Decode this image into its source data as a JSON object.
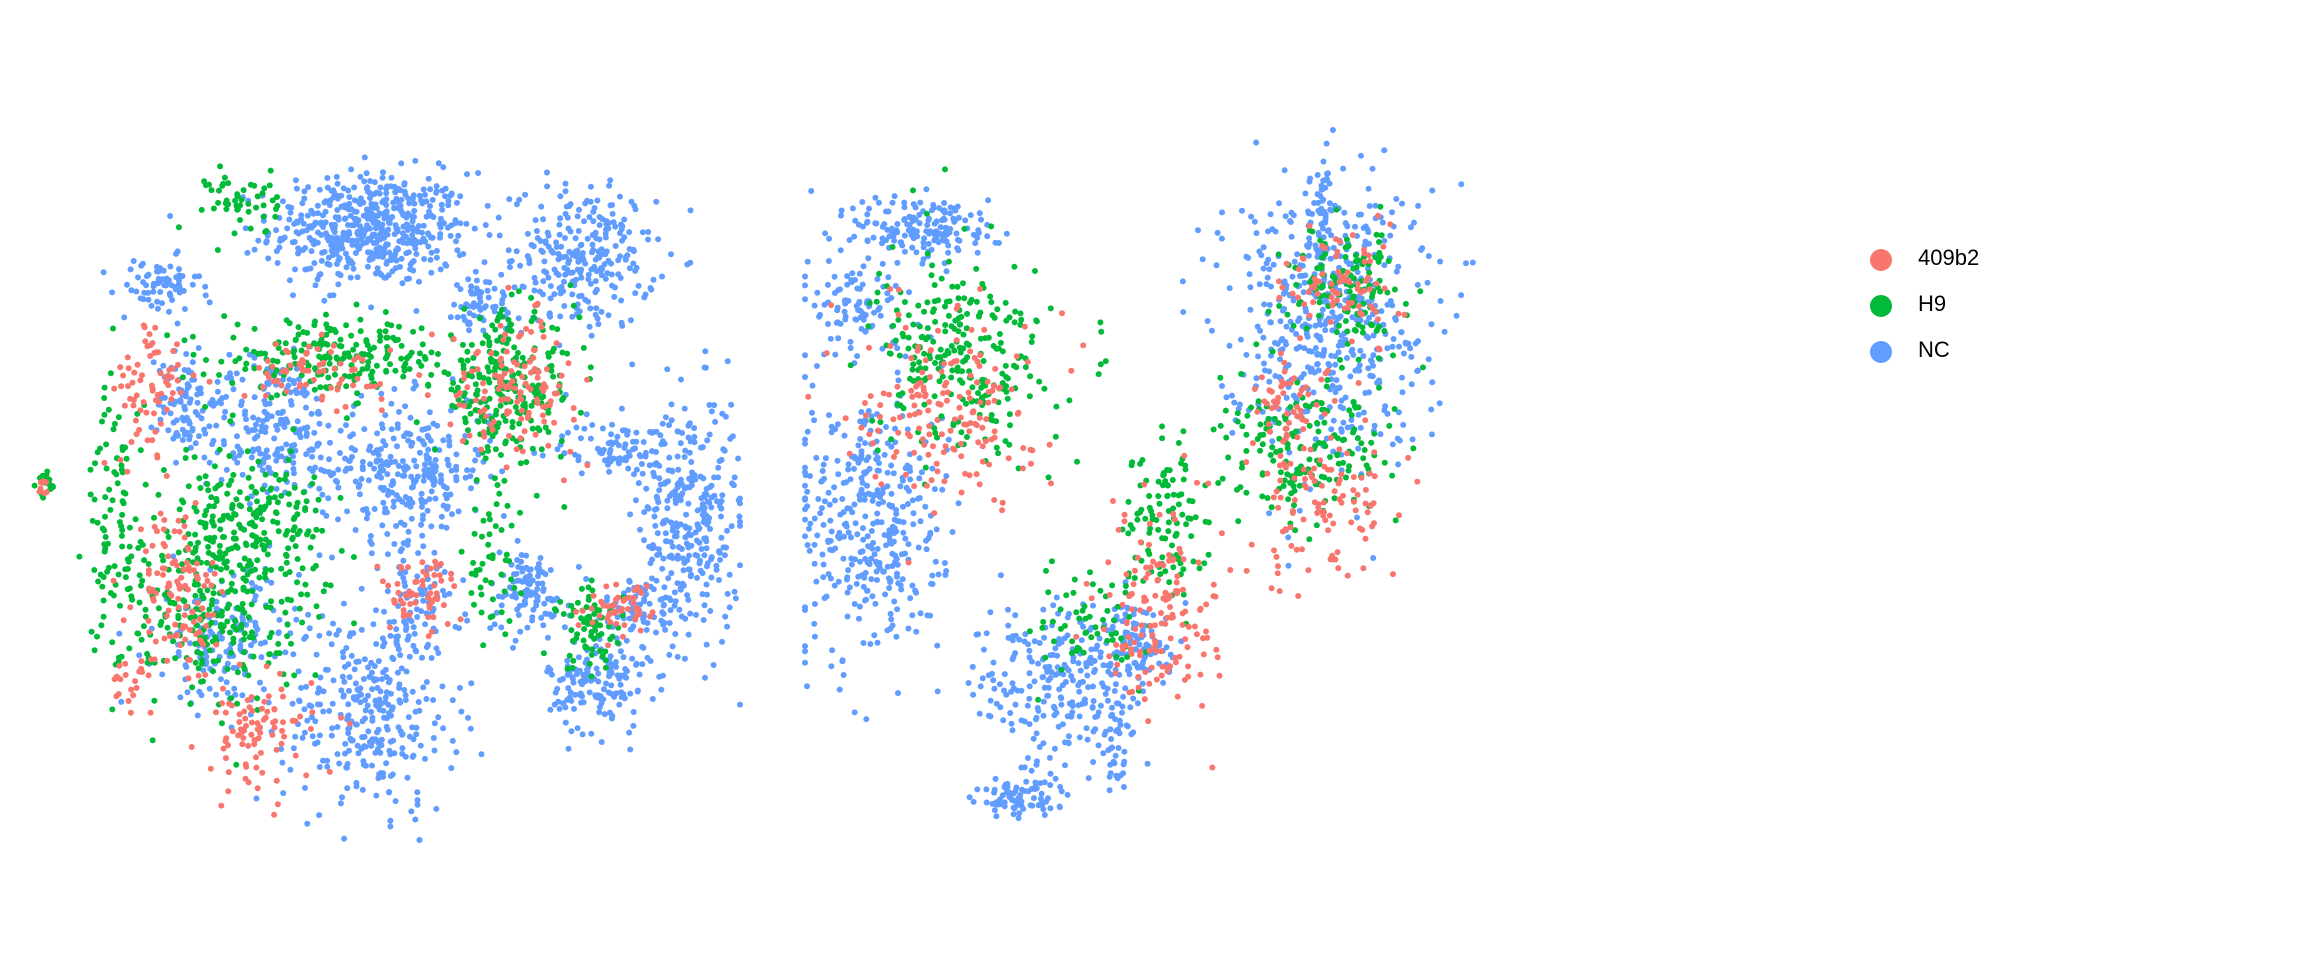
{
  "chart_data": [
    {
      "type": "scatter",
      "panel": "left",
      "title": "",
      "xlabel": "",
      "ylabel": "",
      "grid": false,
      "axes_visible": false,
      "series": [
        {
          "name": "NC",
          "color": "#619CFF",
          "clusters": [
            {
              "cx": 0.48,
              "cy": 0.86,
              "sx": 0.07,
              "sy": 0.04,
              "n": 520
            },
            {
              "cx": 0.78,
              "cy": 0.82,
              "sx": 0.05,
              "sy": 0.05,
              "n": 260
            },
            {
              "cx": 0.18,
              "cy": 0.78,
              "sx": 0.03,
              "sy": 0.02,
              "n": 70
            },
            {
              "cx": 0.22,
              "cy": 0.62,
              "sx": 0.02,
              "sy": 0.04,
              "n": 80
            },
            {
              "cx": 0.34,
              "cy": 0.58,
              "sx": 0.05,
              "sy": 0.05,
              "n": 200
            },
            {
              "cx": 0.53,
              "cy": 0.52,
              "sx": 0.06,
              "sy": 0.05,
              "n": 280
            },
            {
              "cx": 0.93,
              "cy": 0.45,
              "sx": 0.035,
              "sy": 0.09,
              "n": 300
            },
            {
              "cx": 0.83,
              "cy": 0.55,
              "sx": 0.04,
              "sy": 0.02,
              "n": 90
            },
            {
              "cx": 0.8,
              "cy": 0.22,
              "sx": 0.035,
              "sy": 0.035,
              "n": 150
            },
            {
              "cx": 0.86,
              "cy": 0.33,
              "sx": 0.025,
              "sy": 0.02,
              "n": 70
            },
            {
              "cx": 0.7,
              "cy": 0.35,
              "sx": 0.03,
              "sy": 0.03,
              "n": 100
            },
            {
              "cx": 0.48,
              "cy": 0.18,
              "sx": 0.06,
              "sy": 0.07,
              "n": 300
            },
            {
              "cx": 0.28,
              "cy": 0.28,
              "sx": 0.05,
              "sy": 0.05,
              "n": 150
            },
            {
              "cx": 0.55,
              "cy": 0.33,
              "sx": 0.03,
              "sy": 0.03,
              "n": 70
            },
            {
              "cx": 0.63,
              "cy": 0.75,
              "sx": 0.035,
              "sy": 0.025,
              "n": 60
            }
          ]
        },
        {
          "name": "H9",
          "color": "#00BA38",
          "clusters": [
            {
              "cx": 0.67,
              "cy": 0.64,
              "sx": 0.05,
              "sy": 0.05,
              "n": 260
            },
            {
              "cx": 0.43,
              "cy": 0.68,
              "sx": 0.08,
              "sy": 0.025,
              "n": 200
            },
            {
              "cx": 0.3,
              "cy": 0.43,
              "sx": 0.06,
              "sy": 0.06,
              "n": 280
            },
            {
              "cx": 0.25,
              "cy": 0.3,
              "sx": 0.06,
              "sy": 0.06,
              "n": 170
            },
            {
              "cx": 0.3,
              "cy": 0.9,
              "sx": 0.025,
              "sy": 0.025,
              "n": 50
            },
            {
              "cx": 0.12,
              "cy": 0.45,
              "sx": 0.02,
              "sy": 0.1,
              "n": 90
            },
            {
              "cx": 0.79,
              "cy": 0.3,
              "sx": 0.025,
              "sy": 0.03,
              "n": 70
            },
            {
              "cx": 0.65,
              "cy": 0.38,
              "sx": 0.02,
              "sy": 0.06,
              "n": 50
            },
            {
              "cx": 0.02,
              "cy": 0.5,
              "sx": 0.006,
              "sy": 0.01,
              "n": 16
            }
          ]
        },
        {
          "name": "409b2",
          "color": "#F8766D",
          "clusters": [
            {
              "cx": 0.32,
              "cy": 0.15,
              "sx": 0.04,
              "sy": 0.04,
              "n": 90
            },
            {
              "cx": 0.21,
              "cy": 0.35,
              "sx": 0.03,
              "sy": 0.06,
              "n": 110
            },
            {
              "cx": 0.17,
              "cy": 0.63,
              "sx": 0.025,
              "sy": 0.05,
              "n": 70
            },
            {
              "cx": 0.55,
              "cy": 0.35,
              "sx": 0.03,
              "sy": 0.025,
              "n": 60
            },
            {
              "cx": 0.68,
              "cy": 0.64,
              "sx": 0.045,
              "sy": 0.045,
              "n": 130
            },
            {
              "cx": 0.84,
              "cy": 0.33,
              "sx": 0.03,
              "sy": 0.02,
              "n": 50
            },
            {
              "cx": 0.4,
              "cy": 0.66,
              "sx": 0.05,
              "sy": 0.02,
              "n": 70
            },
            {
              "cx": 0.14,
              "cy": 0.22,
              "sx": 0.015,
              "sy": 0.015,
              "n": 20
            },
            {
              "cx": 0.02,
              "cy": 0.5,
              "sx": 0.006,
              "sy": 0.01,
              "n": 8
            }
          ]
        }
      ]
    },
    {
      "type": "scatter",
      "panel": "right",
      "title": "",
      "xlabel": "",
      "ylabel": "",
      "grid": false,
      "axes_visible": false,
      "series": [
        {
          "name": "NC",
          "color": "#619CFF",
          "clusters": [
            {
              "cx": 0.09,
              "cy": 0.45,
              "sx": 0.05,
              "sy": 0.1,
              "n": 380
            },
            {
              "cx": 0.17,
              "cy": 0.86,
              "sx": 0.05,
              "sy": 0.025,
              "n": 160
            },
            {
              "cx": 0.07,
              "cy": 0.76,
              "sx": 0.03,
              "sy": 0.04,
              "n": 90
            },
            {
              "cx": 0.72,
              "cy": 0.74,
              "sx": 0.07,
              "sy": 0.1,
              "n": 520
            },
            {
              "cx": 0.72,
              "cy": 0.88,
              "sx": 0.005,
              "sy": 0.05,
              "n": 40
            },
            {
              "cx": 0.36,
              "cy": 0.22,
              "sx": 0.06,
              "sy": 0.06,
              "n": 260
            },
            {
              "cx": 0.47,
              "cy": 0.27,
              "sx": 0.025,
              "sy": 0.03,
              "n": 80
            },
            {
              "cx": 0.3,
              "cy": 0.06,
              "sx": 0.035,
              "sy": 0.015,
              "n": 80
            },
            {
              "cx": 0.43,
              "cy": 0.12,
              "sx": 0.01,
              "sy": 0.03,
              "n": 30
            }
          ]
        },
        {
          "name": "H9",
          "color": "#00BA38",
          "clusters": [
            {
              "cx": 0.22,
              "cy": 0.68,
              "sx": 0.06,
              "sy": 0.07,
              "n": 260
            },
            {
              "cx": 0.75,
              "cy": 0.78,
              "sx": 0.04,
              "sy": 0.04,
              "n": 130
            },
            {
              "cx": 0.7,
              "cy": 0.54,
              "sx": 0.06,
              "sy": 0.05,
              "n": 170
            },
            {
              "cx": 0.5,
              "cy": 0.45,
              "sx": 0.03,
              "sy": 0.06,
              "n": 110
            },
            {
              "cx": 0.4,
              "cy": 0.3,
              "sx": 0.04,
              "sy": 0.04,
              "n": 60
            }
          ]
        },
        {
          "name": "409b2",
          "color": "#F8766D",
          "clusters": [
            {
              "cx": 0.2,
              "cy": 0.62,
              "sx": 0.06,
              "sy": 0.07,
              "n": 170
            },
            {
              "cx": 0.49,
              "cy": 0.32,
              "sx": 0.04,
              "sy": 0.07,
              "n": 150
            },
            {
              "cx": 0.75,
              "cy": 0.78,
              "sx": 0.04,
              "sy": 0.04,
              "n": 80
            },
            {
              "cx": 0.72,
              "cy": 0.48,
              "sx": 0.06,
              "sy": 0.06,
              "n": 110
            },
            {
              "cx": 0.68,
              "cy": 0.62,
              "sx": 0.03,
              "sy": 0.03,
              "n": 50
            }
          ]
        }
      ]
    }
  ],
  "legend": {
    "items": [
      {
        "label": "409b2",
        "color": "#F8766D"
      },
      {
        "label": "H9",
        "color": "#00BA38"
      },
      {
        "label": "NC",
        "color": "#619CFF"
      }
    ]
  }
}
